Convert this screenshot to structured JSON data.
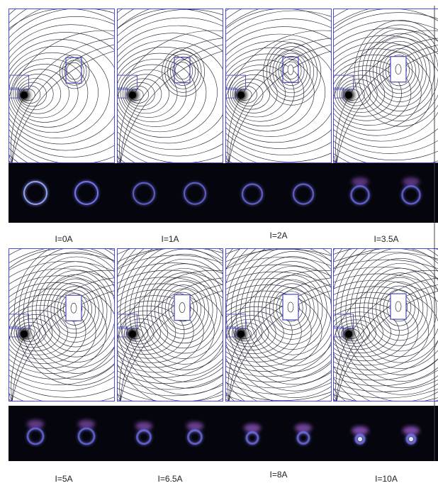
{
  "panels": [
    {
      "label": "I=0A",
      "current": 0
    },
    {
      "label": "I=1A",
      "current": 1
    },
    {
      "label": "I=2A",
      "current": 2
    },
    {
      "label": "I=3.5A",
      "current": 3.5
    },
    {
      "label": "I=5A",
      "current": 5
    },
    {
      "label": "I=6.5A",
      "current": 6.5
    },
    {
      "label": "I=8A",
      "current": 8
    },
    {
      "label": "I=10A",
      "current": 10
    }
  ],
  "colors": {
    "field_line": "#1a1a2e",
    "frame": "#3a3ad0",
    "coil": "#4b4bb8",
    "photo_bg": "#05050d",
    "ring": "#7a7aff",
    "ring_glow": "#c070ff"
  }
}
